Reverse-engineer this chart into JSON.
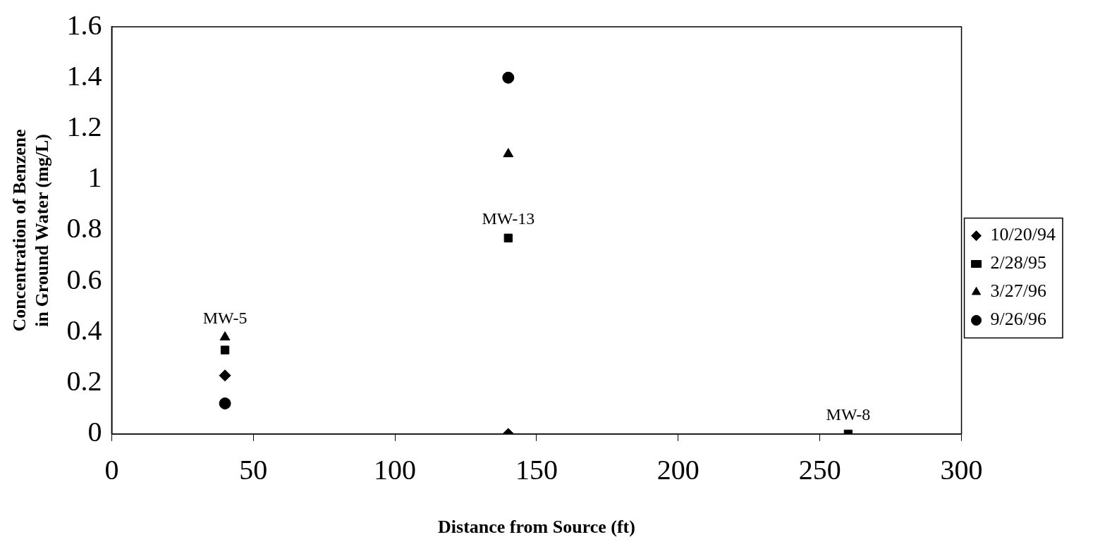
{
  "chart_data": {
    "type": "scatter",
    "xlabel": "Distance from Source (ft)",
    "ylabel": "Concentration of Benzene in Ground Water (mg/L)",
    "x": [
      40,
      140,
      260
    ],
    "series": [
      {
        "name": "10/20/94",
        "color": "#000000",
        "marker": "diamond",
        "values": [
          0.23,
          0,
          null
        ]
      },
      {
        "name": "2/28/95",
        "color": "#000000",
        "marker": "square",
        "values": [
          0.33,
          0.77,
          0
        ]
      },
      {
        "name": "3/27/96",
        "color": "#000000",
        "marker": "triangle",
        "values": [
          0.38,
          1.1,
          null
        ]
      },
      {
        "name": "9/26/96",
        "color": "#000000",
        "marker": "circle",
        "values": [
          0.12,
          1.4,
          null
        ]
      }
    ],
    "annotations": [
      {
        "text": "MW-5",
        "x": 40,
        "y": 0.38
      },
      {
        "text": "MW-13",
        "x": 140,
        "y": 0.77
      },
      {
        "text": "MW-8",
        "x": 260,
        "y": 0
      }
    ],
    "xlim": [
      0,
      300
    ],
    "xticks": [
      0,
      50,
      100,
      150,
      200,
      250,
      300
    ],
    "ylim": [
      0,
      1.6
    ],
    "yticks": [
      0,
      0.2,
      0.4,
      0.6,
      0.8,
      1,
      1.2,
      1.4,
      1.6
    ],
    "grid": false,
    "legend": "right"
  }
}
